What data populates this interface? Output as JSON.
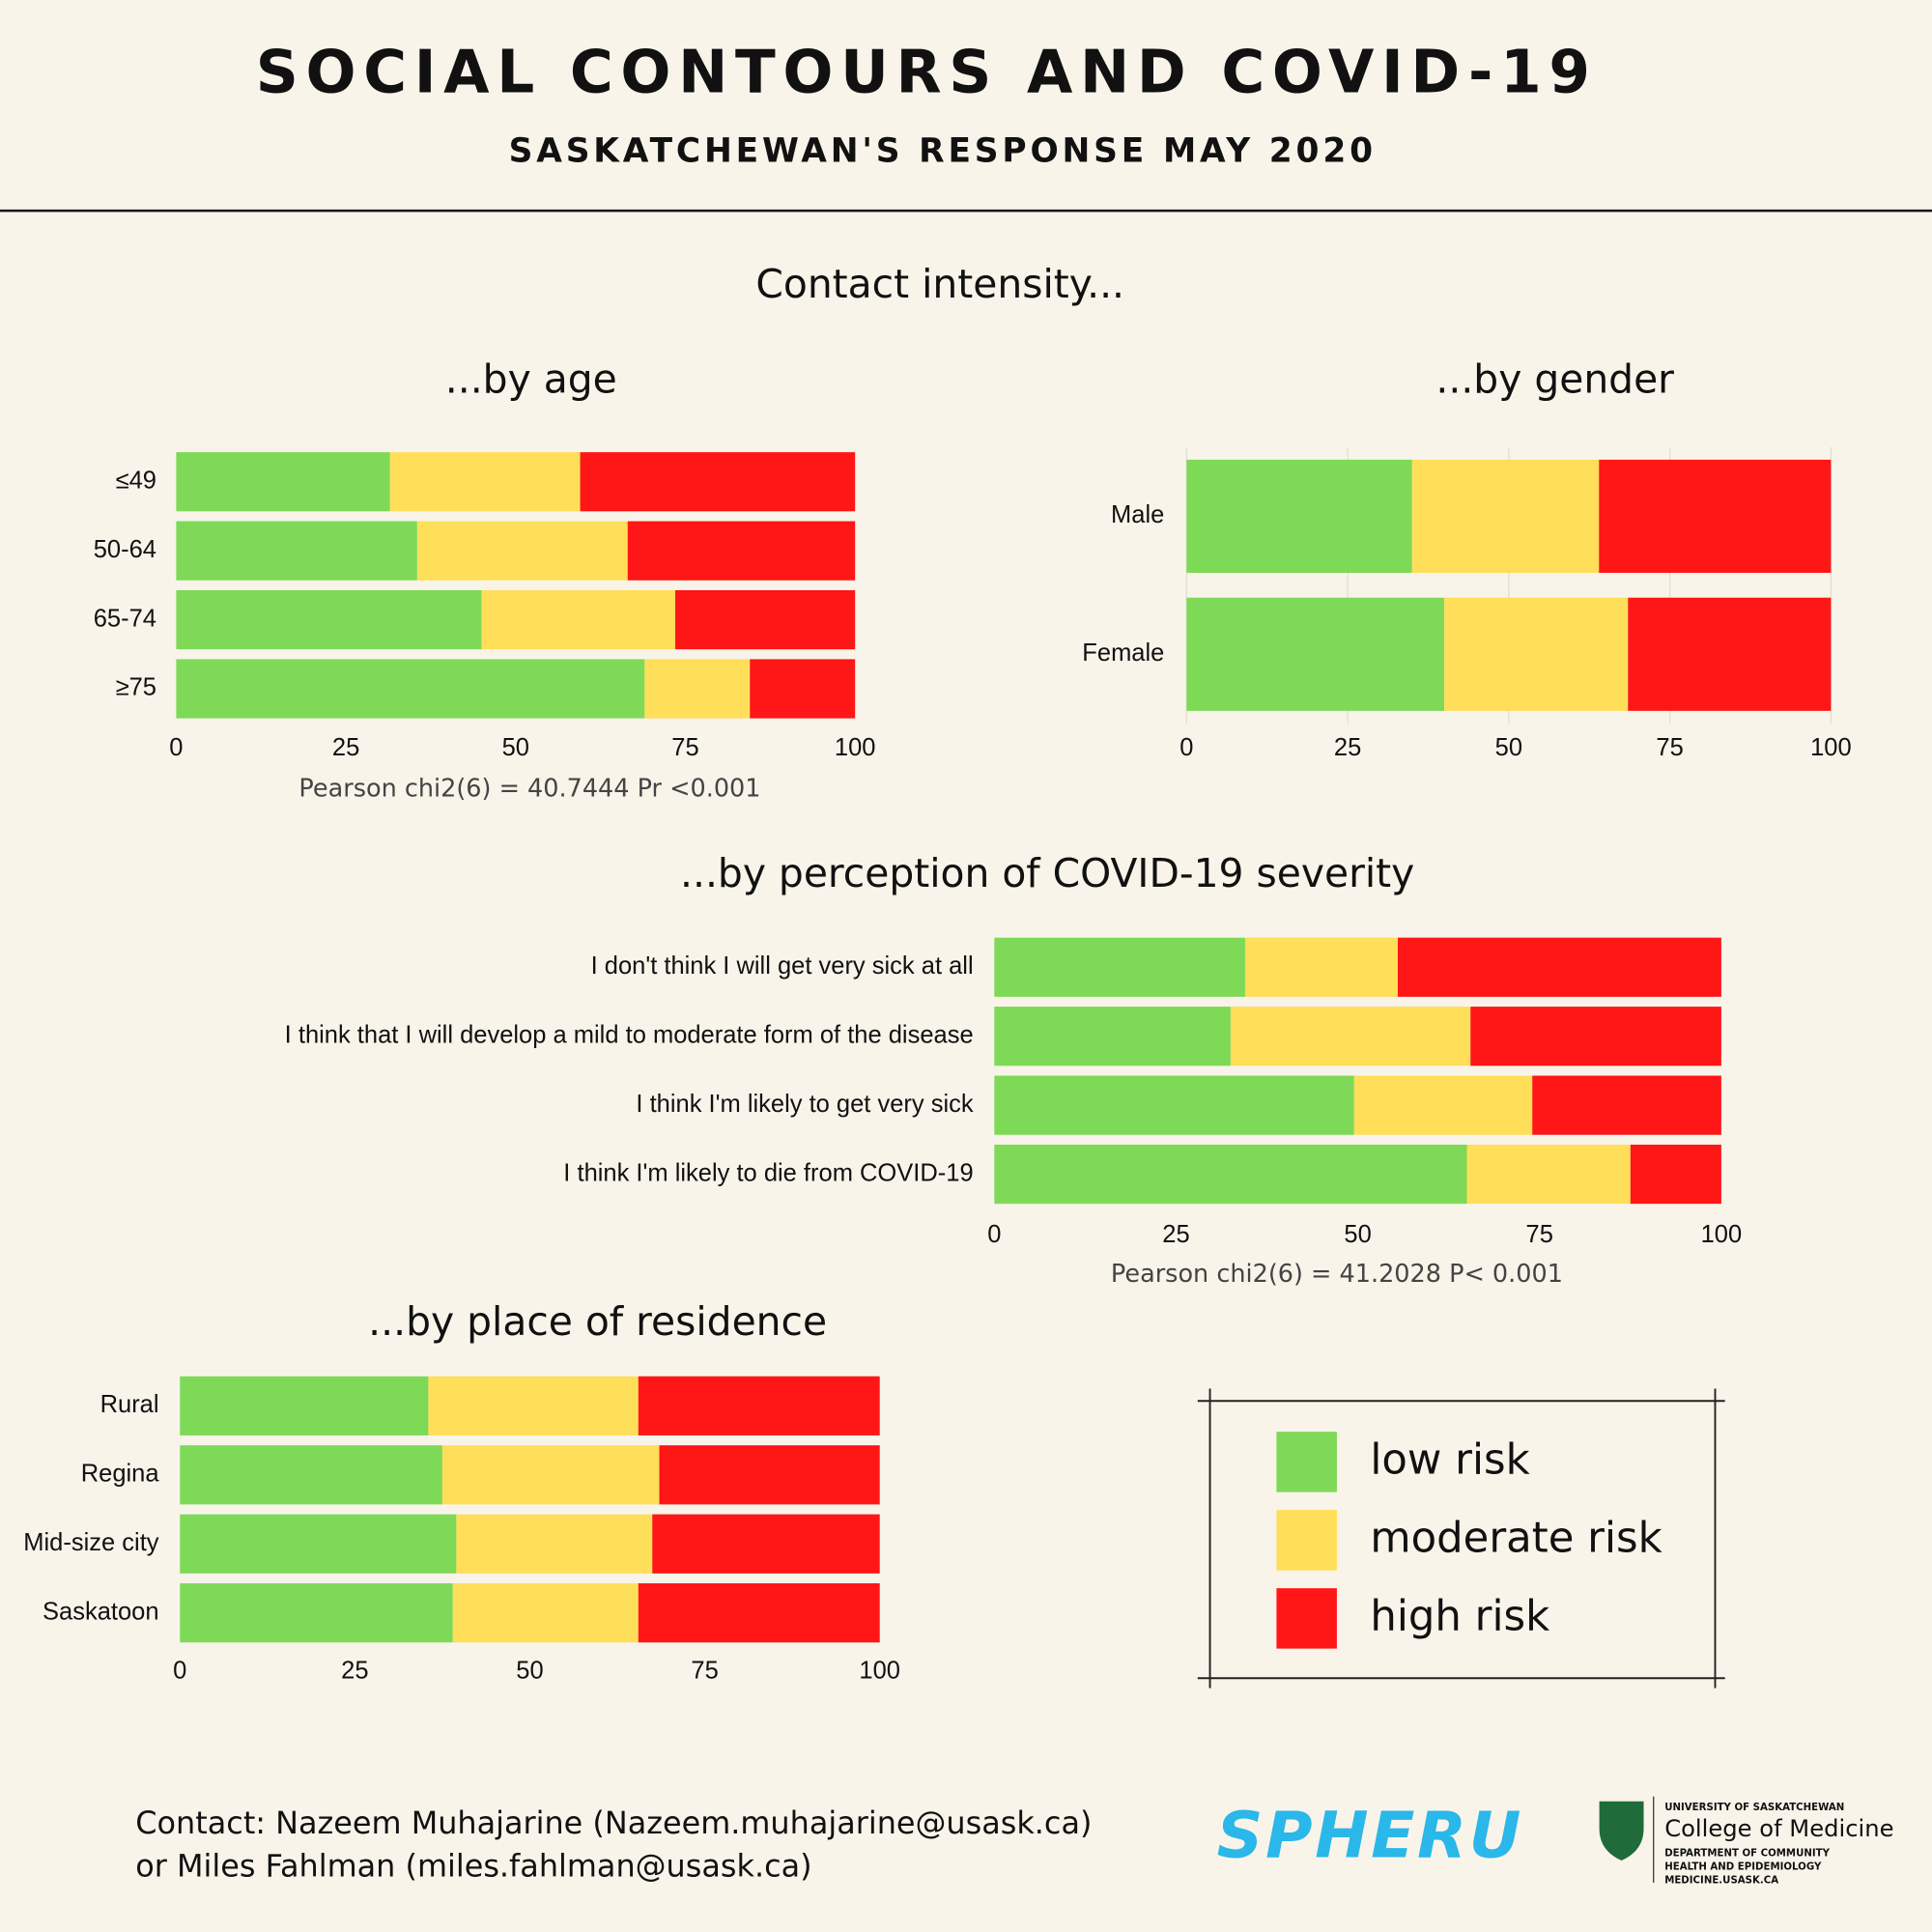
{
  "title": "SOCIAL CONTOURS AND COVID-19",
  "subtitle": "SASKATCHEWAN'S RESPONSE MAY 2020",
  "section_title": "Contact intensity...",
  "contact": [
    "Contact: Nazeem Muhajarine (Nazeem.muhajarine@usask.ca)",
    "or Miles Fahlman (miles.fahlman@usask.ca)"
  ],
  "logos": {
    "spheru": "SPHERU",
    "college": [
      "UNIVERSITY OF SASKATCHEWAN",
      "College of Medicine",
      "DEPARTMENT OF COMMUNITY",
      "HEALTH AND EPIDEMIOLOGY",
      "MEDICINE.USASK.CA"
    ]
  },
  "chart_data": [
    {
      "type": "stacked_bar_h",
      "title": "...by age",
      "categories": [
        "≤49",
        "50-64",
        "65-74",
        "≥75"
      ],
      "series": [
        {
          "name": "low risk",
          "color": "#7ed957",
          "values": [
            31.5,
            35.5,
            45,
            69
          ]
        },
        {
          "name": "moderate risk",
          "color": "#ffde59",
          "values": [
            28,
            31,
            28.5,
            15.5
          ]
        },
        {
          "name": "high risk",
          "color": "#ff1616",
          "values": [
            40.5,
            33.5,
            26.5,
            15.5
          ]
        }
      ],
      "xlim": [
        0,
        100
      ],
      "xticks": [
        0,
        25,
        50,
        75,
        100
      ],
      "grid": false,
      "note": "Pearson chi2(6) =  40.7444   Pr <0.001"
    },
    {
      "type": "stacked_bar_h",
      "title": "...by gender",
      "categories": [
        "Male",
        "Female"
      ],
      "series": [
        {
          "name": "low risk",
          "color": "#7ed957",
          "values": [
            35,
            40
          ]
        },
        {
          "name": "moderate risk",
          "color": "#ffde59",
          "values": [
            29,
            28.5
          ]
        },
        {
          "name": "high risk",
          "color": "#ff1616",
          "values": [
            36,
            31.5
          ]
        }
      ],
      "xlim": [
        0,
        100
      ],
      "xticks": [
        0,
        25,
        50,
        75,
        100
      ],
      "grid": true
    },
    {
      "type": "stacked_bar_h",
      "title": "...by perception of COVID-19 severity",
      "categories": [
        "I don't think I will get very sick at all",
        "I think that I will develop a mild to moderate form of the disease",
        "I think I'm likely to get very sick",
        "I think I'm likely to die from COVID-19"
      ],
      "series": [
        {
          "name": "low risk",
          "color": "#7ed957",
          "values": [
            34.5,
            32.5,
            49.5,
            65
          ]
        },
        {
          "name": "moderate risk",
          "color": "#ffde59",
          "values": [
            21,
            33,
            24.5,
            22.5
          ]
        },
        {
          "name": "high risk",
          "color": "#ff1616",
          "values": [
            44.5,
            34.5,
            26,
            12.5
          ]
        }
      ],
      "xlim": [
        0,
        100
      ],
      "xticks": [
        0,
        25,
        50,
        75,
        100
      ],
      "grid": false,
      "note": "Pearson chi2(6) =  41.2028   P< 0.001"
    },
    {
      "type": "stacked_bar_h",
      "title": "...by place of residence",
      "categories": [
        "Rural",
        "Regina",
        "Mid-size city",
        "Saskatoon"
      ],
      "series": [
        {
          "name": "low risk",
          "color": "#7ed957",
          "values": [
            35.5,
            37.5,
            39.5,
            39
          ]
        },
        {
          "name": "moderate risk",
          "color": "#ffde59",
          "values": [
            30,
            31,
            28,
            26.5
          ]
        },
        {
          "name": "high risk",
          "color": "#ff1616",
          "values": [
            34.5,
            31.5,
            32.5,
            34.5
          ]
        }
      ],
      "xlim": [
        0,
        100
      ],
      "xticks": [
        0,
        25,
        50,
        75,
        100
      ],
      "grid": false
    }
  ]
}
